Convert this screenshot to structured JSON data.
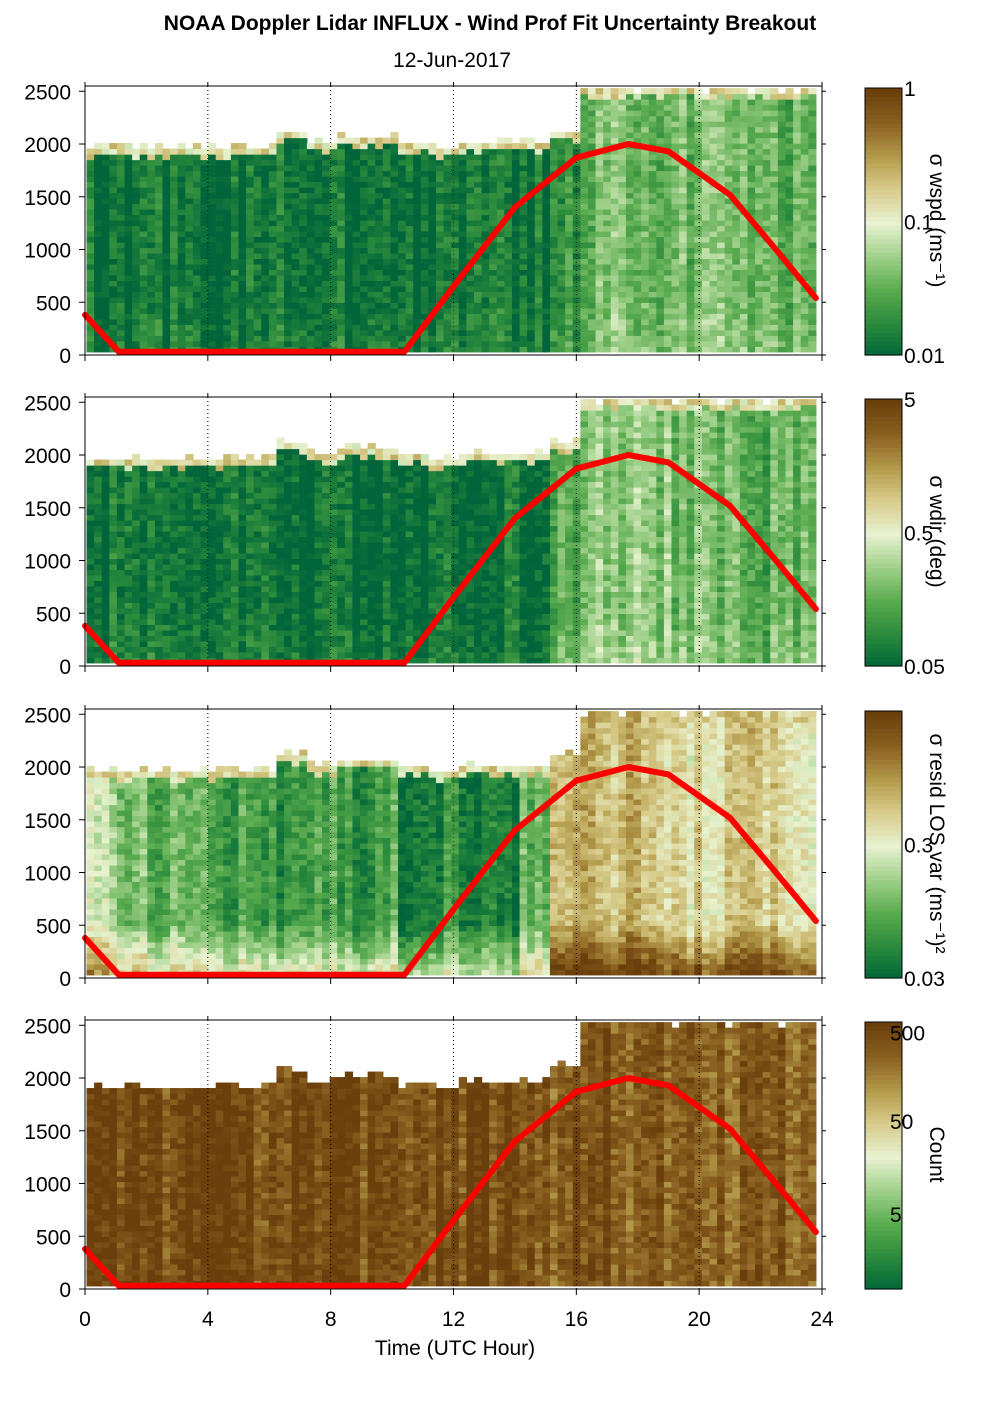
{
  "chart_data": {
    "type": "heatmap",
    "title": "NOAA Doppler Lidar INFLUX - Wind Prof Fit Uncertainty Breakout",
    "subtitle": "12-Jun-2017",
    "xlabel": "Time (UTC Hour)",
    "xlim": [
      0,
      24
    ],
    "x_ticks": [
      "0",
      "4",
      "8",
      "12",
      "16",
      "20",
      "24"
    ],
    "ylim": [
      0,
      2550
    ],
    "y_ticks": [
      "0",
      "500",
      "1000",
      "1500",
      "2000",
      "2500"
    ],
    "grid": "dotted vertical lines at every 4 hours",
    "colormap": [
      "#00653a",
      "#2a8a3c",
      "#5aab4f",
      "#9fd08a",
      "#e8f2d0",
      "#d8cd8c",
      "#b39a4a",
      "#8a6020",
      "#6b3f0c"
    ],
    "overlay_line": {
      "color": "#ff0000",
      "description": "solar elevation curve",
      "points": [
        [
          0.0,
          380
        ],
        [
          1.1,
          30
        ],
        [
          10.4,
          30
        ],
        [
          12.0,
          650
        ],
        [
          14.0,
          1400
        ],
        [
          16.0,
          1870
        ],
        [
          17.7,
          2000
        ],
        [
          19.0,
          1930
        ],
        [
          21.0,
          1520
        ],
        [
          22.5,
          1000
        ],
        [
          23.8,
          540
        ]
      ]
    },
    "panels": [
      {
        "colorbar_label": "σ wspd (ms⁻¹)",
        "colorbar_ticks": [
          "1",
          "0.1",
          "0.01"
        ],
        "cloud_top_m": [
          1950,
          1950,
          1940,
          1940,
          1950,
          1960,
          2100,
          2000,
          2050,
          2050,
          1980,
          1940,
          2000,
          2000,
          2010,
          2100,
          2500,
          2500,
          2500,
          2500,
          2500,
          2500,
          2500,
          2500
        ],
        "early_level": [
          0.05,
          0.05,
          0.04,
          0.04,
          0.04,
          0.04,
          0.04,
          0.04,
          0.04,
          0.04,
          0.04,
          0.05,
          0.06,
          0.06,
          0.06,
          0.18,
          0.3,
          0.32,
          0.3,
          0.3,
          0.28,
          0.26,
          0.25,
          0.24
        ],
        "low_level_boost": 0.05
      },
      {
        "colorbar_label": "σ wdir (deg)",
        "colorbar_ticks": [
          "5",
          "0.5",
          "0.05"
        ],
        "cloud_top_m": [
          1950,
          1950,
          1940,
          1940,
          1950,
          1960,
          2100,
          2000,
          2050,
          2050,
          1980,
          1940,
          2000,
          2000,
          2010,
          2100,
          2500,
          2500,
          2500,
          2500,
          2500,
          2500,
          2500,
          2500
        ],
        "early_level": [
          0.04,
          0.04,
          0.03,
          0.03,
          0.03,
          0.03,
          0.03,
          0.03,
          0.03,
          0.03,
          0.03,
          0.04,
          0.05,
          0.05,
          0.06,
          0.2,
          0.32,
          0.34,
          0.32,
          0.3,
          0.3,
          0.28,
          0.26,
          0.26
        ],
        "low_level_boost": 0.05
      },
      {
        "colorbar_label": "σ resid LOS var (ms⁻¹)²",
        "colorbar_ticks": [
          "0.3",
          "0.03"
        ],
        "cloud_top_m": [
          1950,
          1950,
          1940,
          1940,
          1950,
          1960,
          2100,
          2000,
          2050,
          2050,
          1980,
          1940,
          2000,
          2000,
          2010,
          2100,
          2500,
          2500,
          2500,
          2500,
          2500,
          2500,
          2500,
          2500
        ],
        "early_level": [
          0.45,
          0.3,
          0.25,
          0.3,
          0.2,
          0.18,
          0.14,
          0.2,
          0.16,
          0.22,
          0.1,
          0.12,
          0.12,
          0.1,
          0.3,
          0.7,
          0.72,
          0.66,
          0.6,
          0.58,
          0.6,
          0.62,
          0.6,
          0.6
        ],
        "low_level_boost": 0.35
      },
      {
        "colorbar_label": "Count",
        "colorbar_ticks": [
          "500",
          "50",
          "5"
        ],
        "cloud_top_m": [
          1900,
          1900,
          1890,
          1890,
          1900,
          1910,
          2050,
          1960,
          2000,
          2000,
          1930,
          1900,
          1950,
          1950,
          1960,
          2100,
          2500,
          2500,
          2500,
          2500,
          2500,
          2500,
          2500,
          2500
        ],
        "early_level": [
          0.95,
          0.95,
          0.95,
          0.95,
          0.95,
          0.95,
          0.95,
          0.95,
          0.95,
          0.95,
          0.95,
          0.95,
          0.95,
          0.95,
          0.95,
          0.92,
          0.9,
          0.9,
          0.9,
          0.9,
          0.9,
          0.9,
          0.9,
          0.9
        ],
        "low_level_boost": 0.0
      }
    ]
  }
}
